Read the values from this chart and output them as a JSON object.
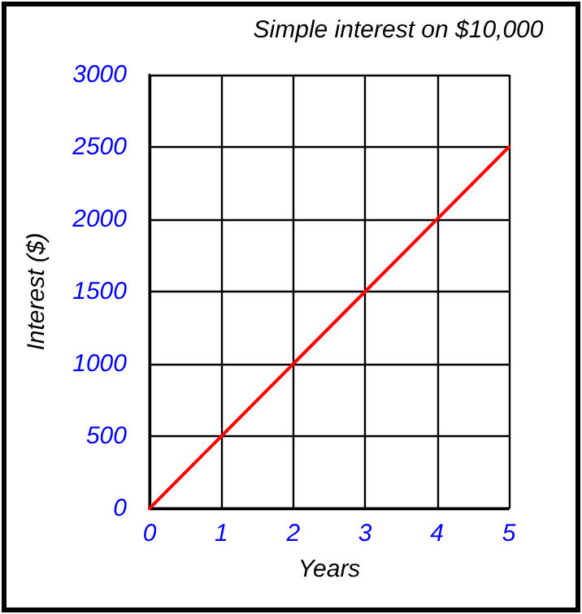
{
  "chart_data": {
    "type": "line",
    "title": "Simple interest on $10,000",
    "xlabel": "Years",
    "ylabel": "Interest ($)",
    "x": [
      0,
      1,
      2,
      3,
      4,
      5
    ],
    "series": [
      {
        "color": "#ff0000",
        "values": [
          0,
          500,
          1000,
          1500,
          2000,
          2500
        ]
      }
    ],
    "xlim": [
      0,
      5
    ],
    "xticks": [
      0,
      1,
      2,
      3,
      4,
      5
    ],
    "ylim": [
      0,
      3000
    ],
    "yticks": [
      0,
      500,
      1000,
      1500,
      2000,
      2500,
      3000
    ],
    "grid": true,
    "marker": "none",
    "line_style": "solid"
  }
}
